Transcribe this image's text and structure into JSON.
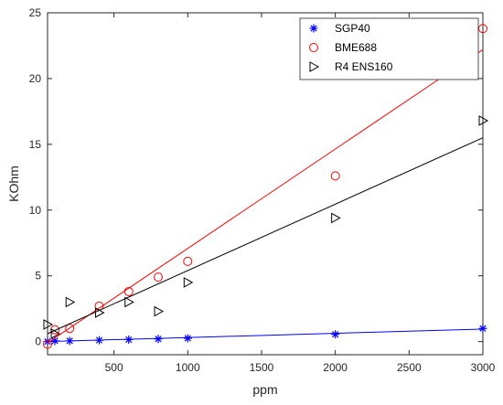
{
  "chart_data": {
    "type": "scatter",
    "xlabel": "ppm",
    "ylabel": "KOhm",
    "xlim": [
      50,
      3000
    ],
    "ylim": [
      -1,
      25
    ],
    "xticks": [
      500,
      1000,
      1500,
      2000,
      2500,
      3000
    ],
    "yticks": [
      0,
      5,
      10,
      15,
      20,
      25
    ],
    "legend_position": "top-right",
    "series": [
      {
        "name": "SGP40",
        "marker": "asterisk",
        "color": "#0000ff",
        "x": [
          50,
          100,
          200,
          400,
          600,
          800,
          1000,
          2000,
          3000
        ],
        "y": [
          0.0,
          0.05,
          0.05,
          0.1,
          0.15,
          0.2,
          0.25,
          0.55,
          1.0
        ],
        "fit": [
          [
            50,
            0.0
          ],
          [
            3000,
            0.95
          ]
        ]
      },
      {
        "name": "BME688",
        "marker": "circle",
        "color": "#ff0000",
        "x": [
          50,
          100,
          200,
          400,
          600,
          800,
          1000,
          2000,
          3000
        ],
        "y": [
          -0.2,
          0.9,
          1.0,
          2.7,
          3.8,
          4.9,
          6.1,
          12.6,
          23.8
        ],
        "fit": [
          [
            50,
            -0.1
          ],
          [
            3000,
            22.2
          ]
        ]
      },
      {
        "name": "R4 ENS160",
        "marker": "triangle-right",
        "color": "#000000",
        "x": [
          50,
          100,
          200,
          400,
          600,
          800,
          1000,
          2000,
          3000
        ],
        "y": [
          1.3,
          0.6,
          3.0,
          2.2,
          3.0,
          2.3,
          4.5,
          9.4,
          16.8
        ],
        "fit": [
          [
            50,
            0.6
          ],
          [
            3000,
            15.5
          ]
        ]
      }
    ]
  }
}
